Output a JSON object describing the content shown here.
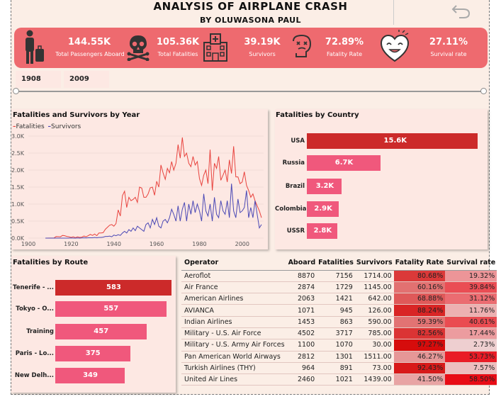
{
  "header": {
    "title": "ANALYSIS OF AIRPLANE CRASH",
    "subtitle": "BY OLUWASONA PAUL"
  },
  "kpis": [
    {
      "value": "144.55K",
      "label": "Total Passengers Aboard",
      "icon": "passenger-luggage-icon"
    },
    {
      "value": "105.36K",
      "label": "Total Fatalities",
      "icon": "skull-crossbones-icon"
    },
    {
      "value": "39.19K",
      "label": "Survivors",
      "icon": "hospital-icon"
    },
    {
      "value": "72.89%",
      "label": "Fatality Rate",
      "icon": "dead-face-icon"
    },
    {
      "value": "27.11%",
      "label": "Survival rate",
      "icon": "happy-heart-icon"
    }
  ],
  "slider": {
    "start": "1908",
    "end": "2009"
  },
  "colors": {
    "fatalities": "#e8443f",
    "survivors": "#4b49b5",
    "kpi_bg": "#ee6a6f",
    "bar_dark": "#cc2a2a",
    "bar_light": "#f0587c"
  },
  "chart_data": [
    {
      "type": "line",
      "title": "Fatalities and Survivors by Year",
      "legend": "top-left",
      "ylim": [
        0,
        3000
      ],
      "xlim": [
        1900,
        2010
      ],
      "x_ticks": [
        "1900",
        "1920",
        "1940",
        "1960",
        "1980",
        "2000"
      ],
      "y_ticks": [
        "0.0K",
        "0.5K",
        "1.0K",
        "1.5K",
        "2.0K",
        "2.5K",
        "3.0K"
      ],
      "series": [
        {
          "name": "Fatalities",
          "x": [
            1908,
            1912,
            1913,
            1915,
            1916,
            1917,
            1918,
            1919,
            1920,
            1921,
            1922,
            1923,
            1924,
            1925,
            1926,
            1927,
            1928,
            1929,
            1930,
            1931,
            1932,
            1933,
            1934,
            1935,
            1936,
            1937,
            1938,
            1939,
            1940,
            1941,
            1942,
            1943,
            1944,
            1945,
            1946,
            1947,
            1948,
            1949,
            1950,
            1951,
            1952,
            1953,
            1954,
            1955,
            1956,
            1957,
            1958,
            1959,
            1960,
            1961,
            1962,
            1963,
            1964,
            1965,
            1966,
            1967,
            1968,
            1969,
            1970,
            1971,
            1972,
            1973,
            1974,
            1975,
            1976,
            1977,
            1978,
            1979,
            1980,
            1981,
            1982,
            1983,
            1984,
            1985,
            1986,
            1987,
            1988,
            1989,
            1990,
            1991,
            1992,
            1993,
            1994,
            1995,
            1996,
            1997,
            1998,
            1999,
            2000,
            2001,
            2002,
            2003,
            2004,
            2005,
            2006,
            2007,
            2008,
            2009
          ],
          "values": [
            1,
            5,
            45,
            40,
            80,
            70,
            50,
            40,
            20,
            40,
            15,
            40,
            20,
            30,
            60,
            40,
            70,
            110,
            80,
            120,
            70,
            150,
            150,
            160,
            260,
            320,
            380,
            400,
            350,
            430,
            830,
            650,
            1250,
            1380,
            900,
            1200,
            1100,
            1140,
            1200,
            1050,
            1500,
            1470,
            1200,
            1200,
            1300,
            1480,
            1500,
            1260,
            1670,
            1500,
            2150,
            1920,
            1730,
            2050,
            1920,
            2250,
            2000,
            2200,
            2750,
            2350,
            2960,
            2400,
            2500,
            2200,
            2100,
            2400,
            2150,
            2250,
            1750,
            1550,
            1850,
            2000,
            1600,
            2600,
            1400,
            2200,
            2050,
            2400,
            1700,
            1850,
            2000,
            1650,
            2300,
            1900,
            2700,
            1800,
            1800,
            1600,
            1650,
            1950,
            1550,
            1400,
            1200,
            1300,
            1100,
            950,
            800,
            600
          ]
        },
        {
          "name": "Survivors",
          "x": [
            1908,
            1912,
            1913,
            1915,
            1916,
            1917,
            1918,
            1919,
            1920,
            1921,
            1922,
            1923,
            1924,
            1925,
            1926,
            1927,
            1928,
            1929,
            1930,
            1931,
            1932,
            1933,
            1934,
            1935,
            1936,
            1937,
            1938,
            1939,
            1940,
            1941,
            1942,
            1943,
            1944,
            1945,
            1946,
            1947,
            1948,
            1949,
            1950,
            1951,
            1952,
            1953,
            1954,
            1955,
            1956,
            1957,
            1958,
            1959,
            1960,
            1961,
            1962,
            1963,
            1964,
            1965,
            1966,
            1967,
            1968,
            1969,
            1970,
            1971,
            1972,
            1973,
            1974,
            1975,
            1976,
            1977,
            1978,
            1979,
            1980,
            1981,
            1982,
            1983,
            1984,
            1985,
            1986,
            1987,
            1988,
            1989,
            1990,
            1991,
            1992,
            1993,
            1994,
            1995,
            1996,
            1997,
            1998,
            1999,
            2000,
            2001,
            2002,
            2003,
            2004,
            2005,
            2006,
            2007,
            2008,
            2009
          ],
          "values": [
            1,
            0,
            0,
            0,
            0,
            0,
            0,
            0,
            5,
            0,
            0,
            5,
            0,
            5,
            10,
            5,
            10,
            10,
            10,
            20,
            10,
            20,
            20,
            30,
            50,
            50,
            60,
            40,
            90,
            70,
            100,
            80,
            150,
            200,
            150,
            250,
            200,
            300,
            220,
            350,
            300,
            250,
            200,
            400,
            450,
            300,
            550,
            400,
            600,
            350,
            300,
            500,
            550,
            450,
            600,
            850,
            700,
            500,
            950,
            500,
            850,
            1050,
            500,
            1000,
            700,
            1100,
            750,
            1000,
            800,
            500,
            1300,
            800,
            650,
            1000,
            500,
            1200,
            700,
            600,
            1100,
            800,
            700,
            1100,
            600,
            1600,
            800,
            600,
            1150,
            750,
            800,
            900,
            1400,
            600,
            900,
            600,
            1100,
            700,
            300,
            400
          ]
        }
      ]
    },
    {
      "type": "bar",
      "orientation": "horizontal",
      "title": "Fatalities by Country",
      "categories": [
        "USA",
        "Russia",
        "Brazil",
        "Colombia",
        "USSR"
      ],
      "values": [
        15.6,
        6.7,
        3.2,
        2.9,
        2.8
      ],
      "labels": [
        "15.6K",
        "6.7K",
        "3.2K",
        "2.9K",
        "2.8K"
      ],
      "unit": "K"
    },
    {
      "type": "bar",
      "orientation": "horizontal",
      "title": "Fatalities by Route",
      "categories": [
        "Tenerife - ...",
        "Tokyo - O...",
        "Training",
        "Paris - Lo...",
        "New Delh..."
      ],
      "values": [
        583,
        557,
        457,
        375,
        349
      ],
      "labels": [
        "583",
        "557",
        "457",
        "375",
        "349"
      ]
    },
    {
      "type": "table",
      "columns": [
        "Operator",
        "Aboard",
        "Fatalities",
        "Survivors",
        "Fatality Rate",
        "Survival rate"
      ],
      "rows": [
        {
          "operator": "Aeroflot",
          "aboard": "8870",
          "fatalities": "7156",
          "survivors": "1714.00",
          "fatality_rate": "80.68%",
          "survival_rate": "19.32%",
          "fr": 80.68,
          "sr": 19.32
        },
        {
          "operator": "Air France",
          "aboard": "2874",
          "fatalities": "1729",
          "survivors": "1145.00",
          "fatality_rate": "60.16%",
          "survival_rate": "39.84%",
          "fr": 60.16,
          "sr": 39.84
        },
        {
          "operator": "American Airlines",
          "aboard": "2063",
          "fatalities": "1421",
          "survivors": "642.00",
          "fatality_rate": "68.88%",
          "survival_rate": "31.12%",
          "fr": 68.88,
          "sr": 31.12
        },
        {
          "operator": "AVIANCA",
          "aboard": "1071",
          "fatalities": "945",
          "survivors": "126.00",
          "fatality_rate": "88.24%",
          "survival_rate": "11.76%",
          "fr": 88.24,
          "sr": 11.76
        },
        {
          "operator": "Indian Airlines",
          "aboard": "1453",
          "fatalities": "863",
          "survivors": "590.00",
          "fatality_rate": "59.39%",
          "survival_rate": "40.61%",
          "fr": 59.39,
          "sr": 40.61
        },
        {
          "operator": "Military - U.S. Air Force",
          "aboard": "4502",
          "fatalities": "3717",
          "survivors": "785.00",
          "fatality_rate": "82.56%",
          "survival_rate": "17.44%",
          "fr": 82.56,
          "sr": 17.44
        },
        {
          "operator": "Military - U.S. Army Air Forces",
          "aboard": "1100",
          "fatalities": "1070",
          "survivors": "30.00",
          "fatality_rate": "97.27%",
          "survival_rate": "2.73%",
          "fr": 97.27,
          "sr": 2.73
        },
        {
          "operator": "Pan American World Airways",
          "aboard": "2812",
          "fatalities": "1301",
          "survivors": "1511.00",
          "fatality_rate": "46.27%",
          "survival_rate": "53.73%",
          "fr": 46.27,
          "sr": 53.73
        },
        {
          "operator": "Turkish Airlines (THY)",
          "aboard": "964",
          "fatalities": "891",
          "survivors": "73.00",
          "fatality_rate": "92.43%",
          "survival_rate": "7.57%",
          "fr": 92.43,
          "sr": 7.57
        },
        {
          "operator": "United Air Lines",
          "aboard": "2460",
          "fatalities": "1021",
          "survivors": "1439.00",
          "fatality_rate": "41.50%",
          "survival_rate": "58.50%",
          "fr": 41.5,
          "sr": 58.5
        }
      ]
    }
  ]
}
